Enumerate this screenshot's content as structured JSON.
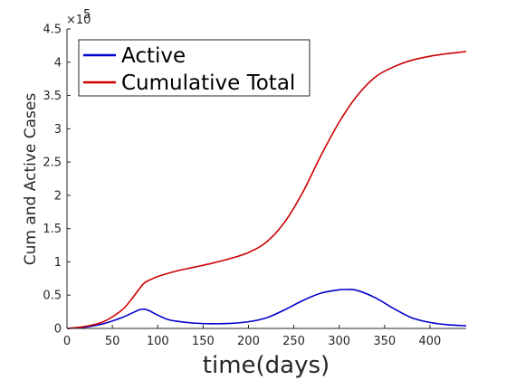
{
  "chart_data": {
    "type": "line",
    "title": "",
    "xlabel": "time(days)",
    "ylabel": "Cum and Active Cases",
    "xlim": [
      0,
      440
    ],
    "ylim": [
      0,
      4.5
    ],
    "y_multiplier_label": "×10",
    "y_multiplier_exponent": "5",
    "xticks": [
      0,
      50,
      100,
      150,
      200,
      250,
      300,
      350,
      400
    ],
    "yticks": [
      0,
      0.5,
      1,
      1.5,
      2,
      2.5,
      3,
      3.5,
      4,
      4.5
    ],
    "grid": false,
    "legend_position": "top-left",
    "series": [
      {
        "name": "Active",
        "color": "#0000cc",
        "x": [
          0,
          20,
          40,
          60,
          70,
          80,
          85,
          90,
          100,
          110,
          120,
          140,
          160,
          180,
          200,
          220,
          240,
          260,
          280,
          300,
          310,
          320,
          340,
          360,
          380,
          400,
          420,
          440
        ],
        "y": [
          0,
          0.02,
          0.07,
          0.16,
          0.22,
          0.28,
          0.29,
          0.27,
          0.2,
          0.14,
          0.11,
          0.08,
          0.07,
          0.075,
          0.1,
          0.16,
          0.28,
          0.42,
          0.53,
          0.58,
          0.585,
          0.57,
          0.46,
          0.3,
          0.16,
          0.09,
          0.055,
          0.04
        ]
      },
      {
        "name": "Cumulative Total",
        "color": "#cc0000",
        "x": [
          0,
          20,
          40,
          60,
          70,
          80,
          85,
          90,
          100,
          120,
          140,
          160,
          180,
          200,
          220,
          240,
          260,
          280,
          300,
          320,
          340,
          360,
          380,
          400,
          420,
          440
        ],
        "y": [
          0,
          0.03,
          0.1,
          0.27,
          0.42,
          0.6,
          0.68,
          0.72,
          0.78,
          0.86,
          0.92,
          0.98,
          1.05,
          1.14,
          1.3,
          1.6,
          2.05,
          2.6,
          3.1,
          3.5,
          3.78,
          3.93,
          4.03,
          4.09,
          4.13,
          4.16
        ]
      }
    ]
  }
}
